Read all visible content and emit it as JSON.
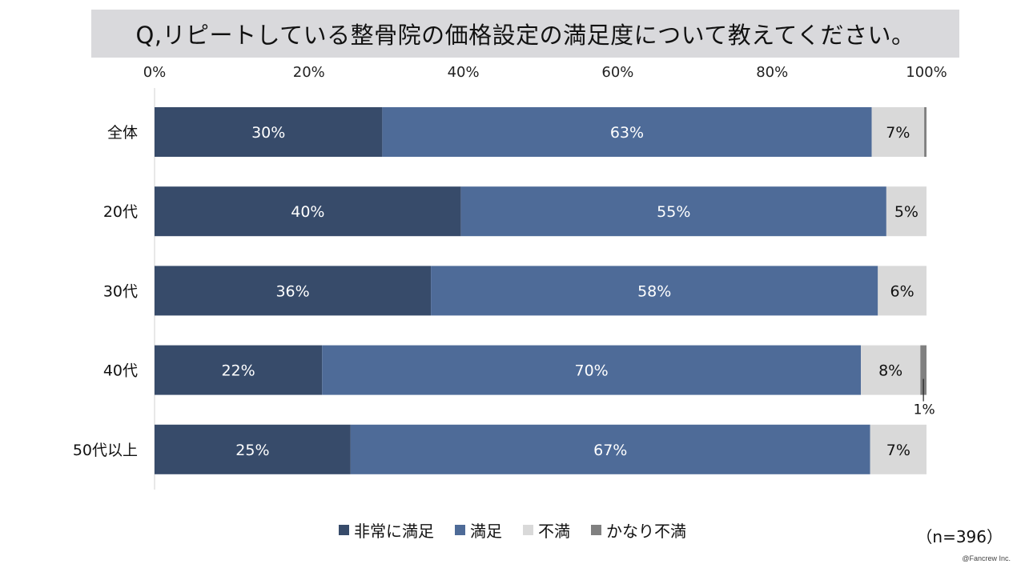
{
  "title": "Q,リピートしている整骨院の価格設定の満足度について教えてください。",
  "sample_size": "（n=396）",
  "copyright": "@Fancrew Inc.",
  "colors": {
    "very_satisfied": "#374b6a",
    "satisfied": "#4e6b98",
    "dissatisfied": "#d9d9d9",
    "very_dissatisfied": "#808080"
  },
  "chart_data": {
    "type": "bar",
    "orientation": "horizontal",
    "stacked": true,
    "categories": [
      "全体",
      "20代",
      "30代",
      "40代",
      "50代以上"
    ],
    "series": [
      {
        "name": "非常に満足",
        "values": [
          29.5,
          39.7,
          35.8,
          21.7,
          25.4
        ],
        "labels": [
          "30%",
          "40%",
          "36%",
          "22%",
          "25%"
        ]
      },
      {
        "name": "満足",
        "values": [
          63.4,
          55.1,
          57.9,
          69.8,
          67.3
        ],
        "labels": [
          "63%",
          "55%",
          "58%",
          "70%",
          "67%"
        ]
      },
      {
        "name": "不満",
        "values": [
          6.8,
          5.2,
          6.3,
          7.7,
          7.3
        ],
        "labels": [
          "7%",
          "5%",
          "6%",
          "8%",
          "7%"
        ]
      },
      {
        "name": "かなり不満",
        "values": [
          0.3,
          0,
          0,
          0.8,
          0
        ],
        "labels": [
          "",
          "",
          "",
          "1%",
          ""
        ]
      }
    ],
    "x_ticks": [
      "0%",
      "20%",
      "40%",
      "60%",
      "80%",
      "100%"
    ],
    "xlim": [
      0,
      100
    ],
    "legend_position": "bottom",
    "grid": false
  }
}
